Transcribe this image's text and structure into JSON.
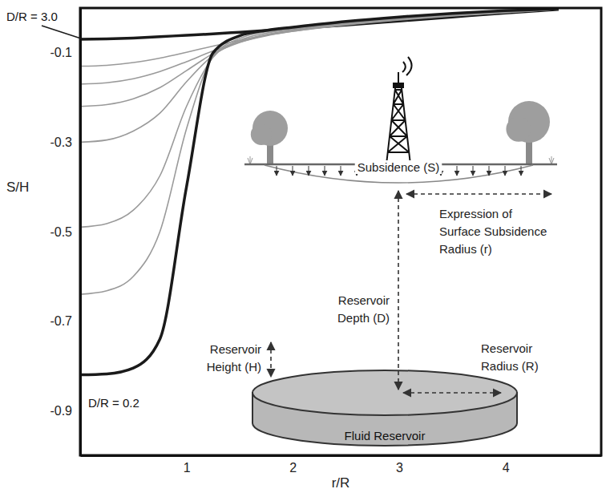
{
  "chart_data": {
    "type": "line",
    "x_label": "r/R",
    "y_label": "S/H",
    "x": [
      0,
      0.25,
      0.5,
      0.75,
      1.0,
      1.25,
      1.5,
      1.75,
      2.0,
      2.5,
      3.0,
      3.5,
      4.0,
      4.5
    ],
    "series": [
      {
        "color": "#1a1a1a",
        "line_style": "thick",
        "values": [
          -0.07,
          -0.069,
          -0.067,
          -0.064,
          -0.061,
          -0.058,
          -0.054,
          -0.05,
          -0.046,
          -0.038,
          -0.029,
          -0.02,
          -0.011,
          -0.003
        ]
      },
      {
        "color": "#9a9a9a",
        "line_style": "thin",
        "values": [
          -0.13,
          -0.128,
          -0.122,
          -0.112,
          -0.099,
          -0.085,
          -0.072,
          -0.061,
          -0.052,
          -0.038,
          -0.027,
          -0.018,
          -0.01,
          -0.003
        ]
      },
      {
        "color": "#9a9a9a",
        "line_style": "thin",
        "values": [
          -0.17,
          -0.167,
          -0.158,
          -0.142,
          -0.12,
          -0.096,
          -0.076,
          -0.062,
          -0.052,
          -0.037,
          -0.026,
          -0.017,
          -0.01,
          -0.003
        ]
      },
      {
        "color": "#9a9a9a",
        "line_style": "thin",
        "values": [
          -0.22,
          -0.216,
          -0.203,
          -0.178,
          -0.14,
          -0.102,
          -0.077,
          -0.061,
          -0.051,
          -0.036,
          -0.025,
          -0.016,
          -0.009,
          -0.003
        ]
      },
      {
        "color": "#9a9a9a",
        "line_style": "thin",
        "values": [
          -0.3,
          -0.295,
          -0.275,
          -0.235,
          -0.165,
          -0.106,
          -0.075,
          -0.059,
          -0.049,
          -0.035,
          -0.024,
          -0.015,
          -0.008,
          -0.002
        ]
      },
      {
        "color": "#9a9a9a",
        "line_style": "thin",
        "values": [
          -0.49,
          -0.482,
          -0.452,
          -0.375,
          -0.22,
          -0.11,
          -0.072,
          -0.056,
          -0.047,
          -0.033,
          -0.022,
          -0.014,
          -0.007,
          -0.002
        ]
      },
      {
        "color": "#9a9a9a",
        "line_style": "thin",
        "values": [
          -0.64,
          -0.632,
          -0.6,
          -0.5,
          -0.27,
          -0.108,
          -0.068,
          -0.053,
          -0.045,
          -0.031,
          -0.021,
          -0.013,
          -0.007,
          -0.002
        ]
      },
      {
        "color": "#1a1a1a",
        "line_style": "thick",
        "values": [
          -0.82,
          -0.818,
          -0.805,
          -0.74,
          -0.4,
          -0.1,
          -0.062,
          -0.05,
          -0.043,
          -0.03,
          -0.02,
          -0.012,
          -0.006,
          -0.002
        ]
      }
    ],
    "xlim": [
      0,
      4.9
    ],
    "xticks": [
      1,
      2,
      3,
      4
    ],
    "ylim": [
      -1.0,
      0.0
    ],
    "yticks": [
      -0.1,
      -0.3,
      -0.5,
      -0.7,
      -0.9
    ],
    "annotations": [
      "D/R = 3.0",
      "D/R = 0.2"
    ]
  },
  "inset": {
    "subsidence": "Subsidence (S)",
    "surface_radius": [
      "Expression of",
      "Surface Subsidence",
      "Radius (r)"
    ],
    "depth": [
      "Reservoir",
      "Depth (D)"
    ],
    "height": [
      "Reservoir",
      "Height (H)"
    ],
    "radius": [
      "Reservoir",
      "Radius (R)"
    ],
    "reservoir": "Fluid Reservoir"
  }
}
